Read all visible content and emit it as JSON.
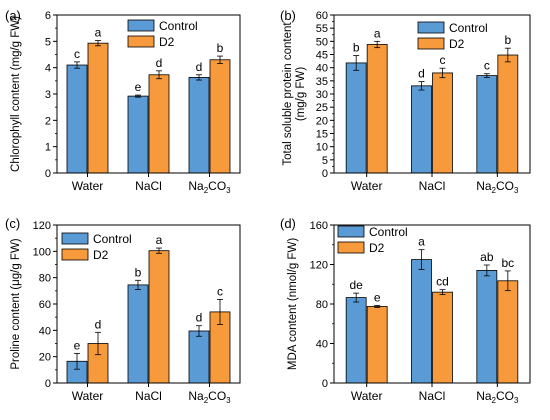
{
  "colors": {
    "control": "#5b9bd5",
    "d2": "#f79a3c",
    "axis": "#000000"
  },
  "legend": {
    "control": "Control",
    "d2": "D2"
  },
  "chart_data": [
    {
      "panel": "(a)",
      "type": "bar",
      "ylabel": "Chlorophyll content (mg/g FW)",
      "ylim": [
        0,
        6
      ],
      "yticks": [
        0,
        1,
        2,
        3,
        4,
        5,
        6
      ],
      "categories": [
        {
          "base": "Water",
          "sub": ""
        },
        {
          "base": "NaCl",
          "sub": ""
        },
        {
          "base": "Na",
          "sub": "2",
          "rest": "CO",
          "sub2": "3"
        }
      ],
      "legend_position": "top-center",
      "series": [
        {
          "name": "Control",
          "values": [
            4.1,
            2.92,
            3.63
          ],
          "errors": [
            0.12,
            0.04,
            0.1
          ],
          "labels": [
            "c",
            "e",
            "d"
          ]
        },
        {
          "name": "D2",
          "values": [
            4.93,
            3.73,
            4.3
          ],
          "errors": [
            0.1,
            0.15,
            0.14
          ],
          "labels": [
            "a",
            "d",
            "b"
          ]
        }
      ]
    },
    {
      "panel": "(b)",
      "type": "bar",
      "ylabel": "Total soluble protein content (mg/g FW)",
      "ylabel_lines": [
        "Total soluble protein content",
        "(mg/g FW)"
      ],
      "ylim": [
        0,
        60
      ],
      "yticks": [
        0,
        5,
        10,
        15,
        20,
        25,
        30,
        35,
        40,
        45,
        50,
        55,
        60
      ],
      "categories": [
        {
          "base": "Water",
          "sub": ""
        },
        {
          "base": "NaCl",
          "sub": ""
        },
        {
          "base": "Na",
          "sub": "2",
          "rest": "CO",
          "sub2": "3"
        }
      ],
      "legend_position": "top-center",
      "series": [
        {
          "name": "Control",
          "values": [
            41.8,
            33.1,
            37.0
          ],
          "errors": [
            2.8,
            1.6,
            0.7
          ],
          "labels": [
            "b",
            "d",
            "c"
          ]
        },
        {
          "name": "D2",
          "values": [
            48.8,
            38.0,
            44.8
          ],
          "errors": [
            1.2,
            1.8,
            2.6
          ],
          "labels": [
            "a",
            "c",
            "b"
          ]
        }
      ]
    },
    {
      "panel": "(c)",
      "type": "bar",
      "ylabel": "Proline content (μg/g FW)",
      "ylim": [
        0,
        120
      ],
      "yticks": [
        0,
        20,
        40,
        60,
        80,
        100,
        120
      ],
      "categories": [
        {
          "base": "Water",
          "sub": ""
        },
        {
          "base": "NaCl",
          "sub": ""
        },
        {
          "base": "Na",
          "sub": "2",
          "rest": "CO",
          "sub2": "3"
        }
      ],
      "legend_position": "top-left",
      "series": [
        {
          "name": "Control",
          "values": [
            16.5,
            74.5,
            39.5
          ],
          "errors": [
            6.0,
            3.5,
            4.0
          ],
          "labels": [
            "e",
            "b",
            "d"
          ]
        },
        {
          "name": "D2",
          "values": [
            30.0,
            100.5,
            54.0
          ],
          "errors": [
            8.5,
            2.0,
            9.5
          ],
          "labels": [
            "d",
            "a",
            "c"
          ]
        }
      ]
    },
    {
      "panel": "(d)",
      "type": "bar",
      "ylabel": "MDA content (nmol/g FW)",
      "ylim": [
        0,
        160
      ],
      "yticks": [
        0,
        40,
        80,
        120,
        160
      ],
      "categories": [
        {
          "base": "Water",
          "sub": ""
        },
        {
          "base": "NaCl",
          "sub": ""
        },
        {
          "base": "Na",
          "sub": "2",
          "rest": "CO",
          "sub2": "3"
        }
      ],
      "legend_position": "top-left",
      "series": [
        {
          "name": "Control",
          "values": [
            86.5,
            125.0,
            114.0
          ],
          "errors": [
            4.5,
            10.0,
            5.5
          ],
          "labels": [
            "de",
            "a",
            "ab"
          ]
        },
        {
          "name": "D2",
          "values": [
            77.5,
            92.0,
            103.5
          ],
          "errors": [
            1.0,
            2.5,
            10.0
          ],
          "labels": [
            "e",
            "cd",
            "bc"
          ]
        }
      ]
    }
  ]
}
